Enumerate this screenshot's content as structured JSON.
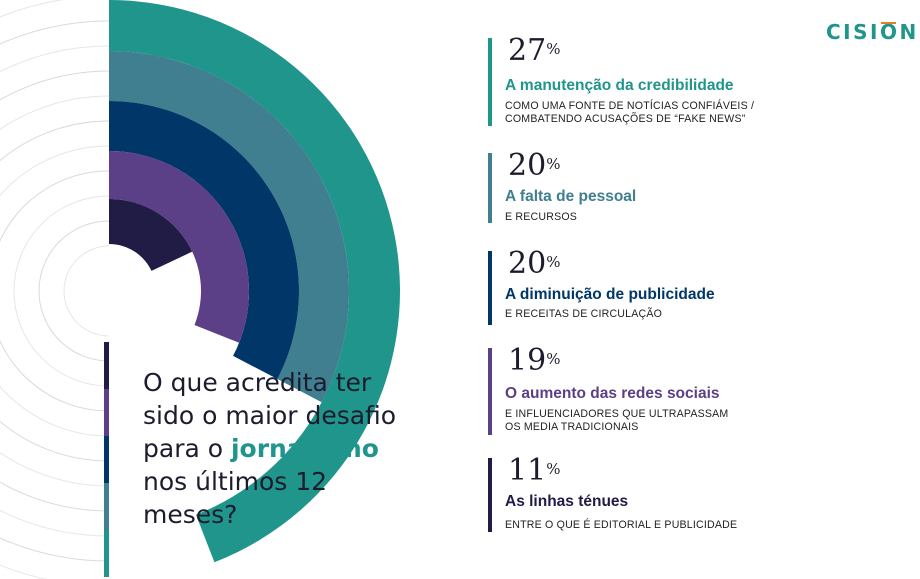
{
  "brand": {
    "name": "CISION",
    "mark": "™"
  },
  "question": {
    "before": "O que acredita ter sido o maior desafio para o",
    "highlight": "jornalismo",
    "after": "nos últimos 12 meses?"
  },
  "chart_data": {
    "type": "pie",
    "title": "O que acredita ter sido o maior desafio para o jornalismo nos últimos 12 meses?",
    "unit": "%",
    "series": [
      {
        "value": 27,
        "title": "A manutenção da credibilidade",
        "description": "COMO UMA FONTE DE NOTÍCIAS CONFIÁVEIS / COMBATENDO ACUSAÇÕES DE “FAKE NEWS”",
        "color": "#1f958c"
      },
      {
        "value": 20,
        "title": "A falta de pessoal",
        "description": "E RECURSOS",
        "color": "#3f7f8f"
      },
      {
        "value": 20,
        "title": "A diminuição de publicidade",
        "description": "E RECEITAS DE CIRCULAÇÃO",
        "color": "#013668"
      },
      {
        "value": 19,
        "title": "O aumento das redes sociais",
        "description": "E INFLUENCIADORES QUE ULTRAPASSAM OS MEDIA TRADICIONAIS",
        "color": "#5b3f87"
      },
      {
        "value": 11,
        "title": "As linhas ténues",
        "description": "ENTRE O QUE É EDITORIAL E PUBLICIDADE",
        "color": "#201c45"
      }
    ]
  }
}
